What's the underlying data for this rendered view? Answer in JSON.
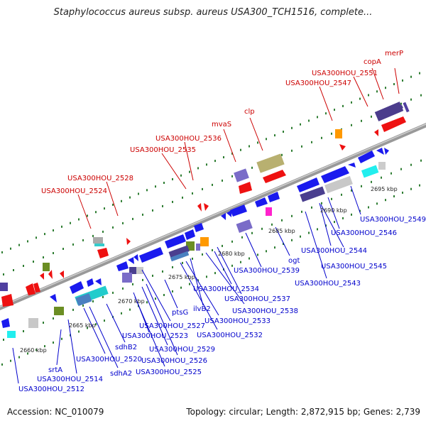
{
  "title": "Staphylococcus aureus subsp. aureus USA300_TCH1516, complete...",
  "footer": {
    "accession": "Accession: NC_010079",
    "summary": "Topology: circular; Length: 2,872,915 bp; Genes: 2,739"
  },
  "colors": {
    "top_strand_label": "#cc0000",
    "bottom_strand_label": "#0000cc",
    "backbone": "#888888",
    "tick": "#2e7d32"
  },
  "ticks": [
    "2660 kbp",
    "2665 kbp",
    "2670 kbp",
    "2675 kbp",
    "2680 kbp",
    "2685 kbp",
    "2690 kbp",
    "2695 kbp"
  ],
  "top_labels": [
    "merP",
    "copA",
    "USA300HOU_2551",
    "USA300HOU_2547",
    "clp",
    "mvaS",
    "USA300HOU_2536",
    "USA300HOU_2535",
    "USA300HOU_2528",
    "USA300HOU_2524"
  ],
  "bottom_labels": [
    "USA300HOU_2549",
    "USA300HOU_2546",
    "USA300HOU_2544",
    "USA300HOU_2545",
    "USA300HOU_2543",
    "ogt",
    "USA300HOU_2539",
    "USA300HOU_2534",
    "USA300HOU_2537",
    "USA300HOU_2538",
    "ilvB2",
    "USA300HOU_2533",
    "USA300HOU_2532",
    "ptsG",
    "USA300HOU_2527",
    "USA300HOU_2523",
    "USA300HOU_2529",
    "USA300HOU_2526",
    "USA300HOU_2525",
    "sdhB2",
    "USA300HOU_2520",
    "sdhA2",
    "srtA",
    "USA300HOU_2514",
    "USA300HOU_2512"
  ]
}
